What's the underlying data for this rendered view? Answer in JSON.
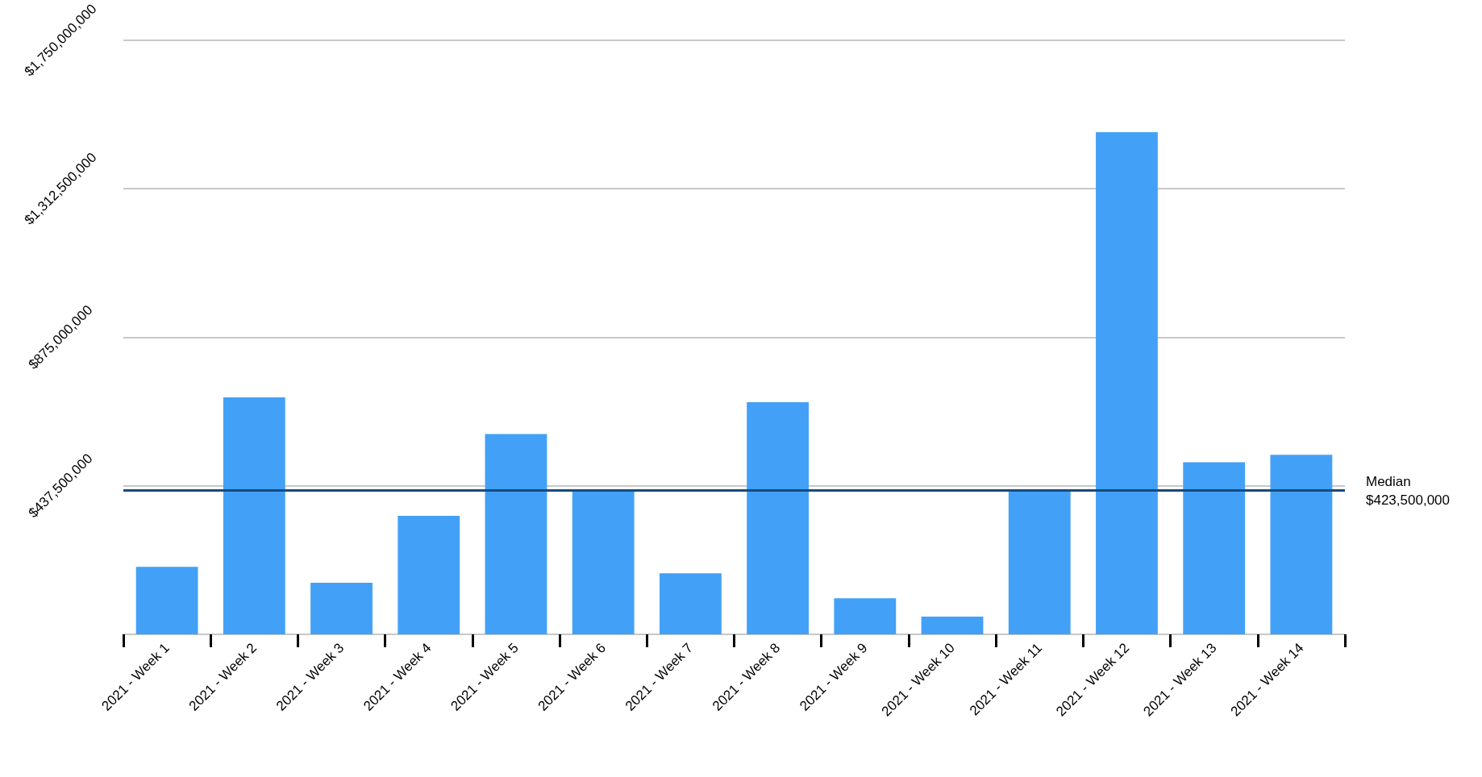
{
  "chart_data": {
    "type": "bar",
    "categories": [
      "2021 - Week 1",
      "2021 - Week 2",
      "2021 - Week 3",
      "2021 - Week 4",
      "2021 - Week 5",
      "2021 - Week 6",
      "2021 - Week 7",
      "2021 - Week 8",
      "2021 - Week 9",
      "2021 - Week 10",
      "2021 - Week 11",
      "2021 - Week 12",
      "2021 - Week 13",
      "2021 - Week 14"
    ],
    "values": [
      199000000,
      698000000,
      152000000,
      349000000,
      590000000,
      423000000,
      180000000,
      684000000,
      106000000,
      52000000,
      424000000,
      1479000000,
      507000000,
      529000000
    ],
    "color": "#42a1f7",
    "ylim": [
      0,
      1750000000
    ],
    "yticks": [
      {
        "value": 0,
        "label": null
      },
      {
        "value": 437500000,
        "label": "$437,500,000"
      },
      {
        "value": 875000000,
        "label": "$875,000,000"
      },
      {
        "value": 1312500000,
        "label": "$1,312,500,000"
      },
      {
        "value": 1750000000,
        "label": "$1,750,000,000"
      }
    ],
    "ref_lines": [
      {
        "axis": "y",
        "value": 423500000,
        "label": "Median\n$423,500,000",
        "color": "#174a7c",
        "line_style": "solid"
      }
    ],
    "grid": "y"
  }
}
